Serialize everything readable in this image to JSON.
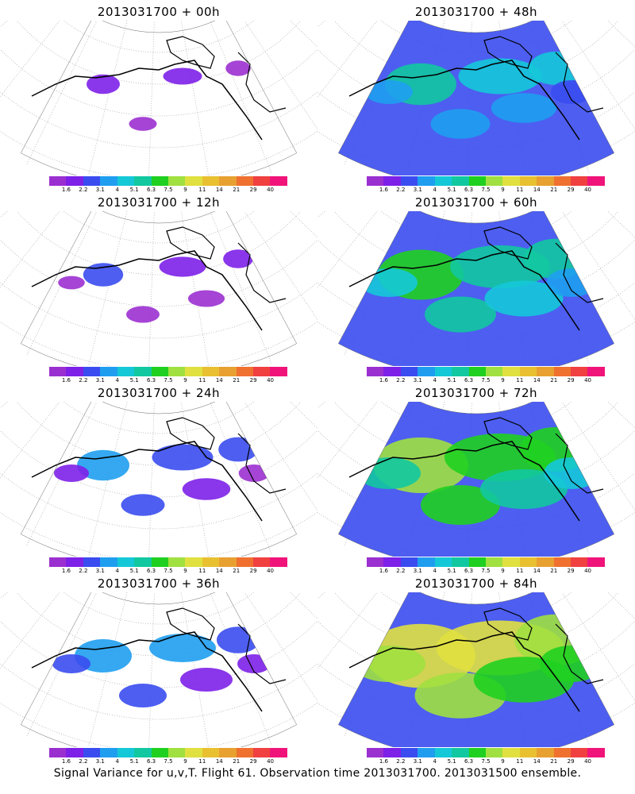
{
  "chart_data": [
    {
      "type": "heatmap",
      "title": "2013031700 + 00h",
      "intensity": 0.05
    },
    {
      "type": "heatmap",
      "title": "2013031700 + 48h",
      "intensity": 0.45
    },
    {
      "type": "heatmap",
      "title": "2013031700 + 12h",
      "intensity": 0.12
    },
    {
      "type": "heatmap",
      "title": "2013031700 + 60h",
      "intensity": 0.6
    },
    {
      "type": "heatmap",
      "title": "2013031700 + 24h",
      "intensity": 0.25
    },
    {
      "type": "heatmap",
      "title": "2013031700 + 72h",
      "intensity": 0.7
    },
    {
      "type": "heatmap",
      "title": "2013031700 + 36h",
      "intensity": 0.3
    },
    {
      "type": "heatmap",
      "title": "2013031700 + 84h",
      "intensity": 0.85
    }
  ],
  "colorbar": {
    "colors": [
      "#9b30d0",
      "#7d20e8",
      "#3a4cf0",
      "#1f9ef0",
      "#15c8d8",
      "#12c8a0",
      "#20d020",
      "#a0e040",
      "#e0e040",
      "#e8c030",
      "#e8a030",
      "#f07030",
      "#f04040",
      "#f0147a"
    ],
    "labels": [
      "1.6",
      "2.2",
      "3.1",
      "4",
      "5.1",
      "6.3",
      "7.5",
      "9",
      "11",
      "14",
      "21",
      "29",
      "40"
    ]
  },
  "footer": "Signal Variance for u,v,T. Flight 61. Observation time 2013031700. 2013031500 ensemble."
}
